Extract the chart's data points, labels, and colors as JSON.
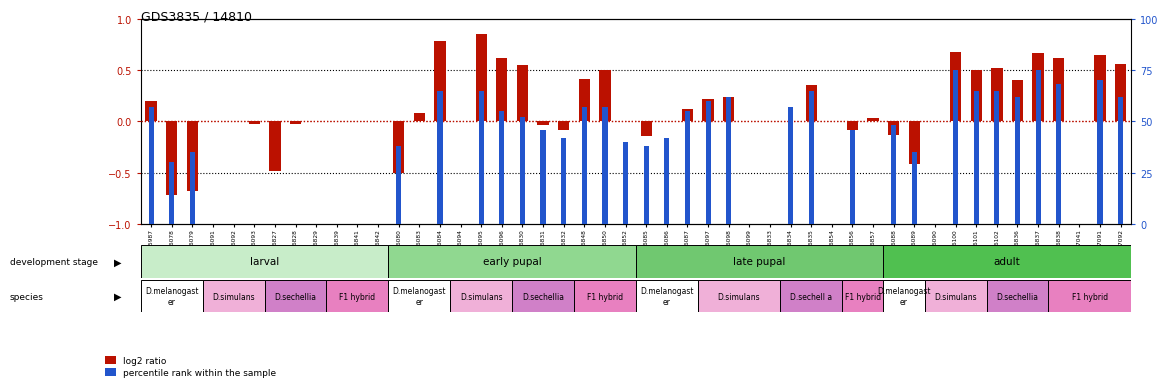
{
  "title": "GDS3835 / 14810",
  "samples": [
    "GSM435987",
    "GSM436078",
    "GSM436079",
    "GSM436091",
    "GSM436092",
    "GSM436093",
    "GSM436827",
    "GSM436828",
    "GSM436829",
    "GSM436839",
    "GSM436841",
    "GSM436842",
    "GSM436080",
    "GSM436083",
    "GSM436084",
    "GSM436094",
    "GSM436095",
    "GSM436096",
    "GSM436830",
    "GSM436831",
    "GSM436832",
    "GSM436848",
    "GSM436850",
    "GSM436852",
    "GSM436085",
    "GSM436086",
    "GSM436087",
    "GSM436097",
    "GSM436098",
    "GSM436099",
    "GSM436833",
    "GSM436834",
    "GSM436835",
    "GSM436854",
    "GSM436856",
    "GSM436857",
    "GSM436088",
    "GSM436089",
    "GSM436090",
    "GSM436100",
    "GSM436101",
    "GSM436102",
    "GSM436836",
    "GSM436837",
    "GSM436838",
    "GSM437041",
    "GSM437091",
    "GSM437092"
  ],
  "log2_ratio": [
    0.2,
    -0.72,
    -0.68,
    0.0,
    0.0,
    -0.03,
    -0.48,
    -0.03,
    0.0,
    0.0,
    0.0,
    0.0,
    -0.5,
    0.08,
    0.78,
    0.0,
    0.85,
    0.62,
    0.55,
    -0.04,
    -0.08,
    0.41,
    0.5,
    0.0,
    -0.14,
    0.0,
    0.12,
    0.22,
    0.24,
    0.0,
    0.0,
    0.0,
    0.35,
    0.0,
    -0.08,
    0.03,
    -0.13,
    -0.42,
    0.0,
    0.68,
    0.5,
    0.52,
    0.4,
    0.67,
    0.62,
    0.0,
    0.65,
    0.56
  ],
  "percentile": [
    57,
    30,
    35,
    50,
    50,
    50,
    50,
    50,
    50,
    50,
    50,
    50,
    38,
    50,
    65,
    50,
    65,
    55,
    52,
    46,
    42,
    57,
    57,
    40,
    38,
    42,
    55,
    60,
    62,
    50,
    50,
    57,
    65,
    50,
    46,
    50,
    48,
    35,
    50,
    75,
    65,
    65,
    62,
    75,
    68,
    50,
    70,
    62
  ],
  "dev_stage_groups": [
    {
      "label": "larval",
      "start": 0,
      "end": 12,
      "color": "#c8edc9"
    },
    {
      "label": "early pupal",
      "start": 12,
      "end": 24,
      "color": "#90d890"
    },
    {
      "label": "late pupal",
      "start": 24,
      "end": 36,
      "color": "#70c870"
    },
    {
      "label": "adult",
      "start": 36,
      "end": 48,
      "color": "#50c050"
    }
  ],
  "species_groups": [
    {
      "label": "D.melanogast\ner",
      "start": 0,
      "end": 3,
      "color": "#ffffff"
    },
    {
      "label": "D.simulans",
      "start": 3,
      "end": 6,
      "color": "#f0b0d8"
    },
    {
      "label": "D.sechellia",
      "start": 6,
      "end": 9,
      "color": "#d080c8"
    },
    {
      "label": "F1 hybrid",
      "start": 9,
      "end": 12,
      "color": "#e880c0"
    },
    {
      "label": "D.melanogast\ner",
      "start": 12,
      "end": 15,
      "color": "#ffffff"
    },
    {
      "label": "D.simulans",
      "start": 15,
      "end": 18,
      "color": "#f0b0d8"
    },
    {
      "label": "D.sechellia",
      "start": 18,
      "end": 21,
      "color": "#d080c8"
    },
    {
      "label": "F1 hybrid",
      "start": 21,
      "end": 24,
      "color": "#e880c0"
    },
    {
      "label": "D.melanogast\ner",
      "start": 24,
      "end": 27,
      "color": "#ffffff"
    },
    {
      "label": "D.simulans",
      "start": 27,
      "end": 31,
      "color": "#f0b0d8"
    },
    {
      "label": "D.sechell a",
      "start": 31,
      "end": 34,
      "color": "#d080c8"
    },
    {
      "label": "F1 hybrid",
      "start": 34,
      "end": 36,
      "color": "#e880c0"
    },
    {
      "label": "D.melanogast\ner",
      "start": 36,
      "end": 38,
      "color": "#ffffff"
    },
    {
      "label": "D.simulans",
      "start": 38,
      "end": 41,
      "color": "#f0b0d8"
    },
    {
      "label": "D.sechellia",
      "start": 41,
      "end": 44,
      "color": "#d080c8"
    },
    {
      "label": "F1 hybrid",
      "start": 44,
      "end": 48,
      "color": "#e880c0"
    }
  ],
  "red_color": "#bb1100",
  "blue_color": "#2255cc",
  "ylim_left": [
    -1.0,
    1.0
  ],
  "ylim_right": [
    0,
    100
  ],
  "yticks_left": [
    -1,
    -0.5,
    0,
    0.5,
    1
  ],
  "yticks_right": [
    0,
    25,
    50,
    75,
    100
  ],
  "hlines_dotted": [
    0.5,
    -0.5
  ],
  "hline_zero": 0.0
}
